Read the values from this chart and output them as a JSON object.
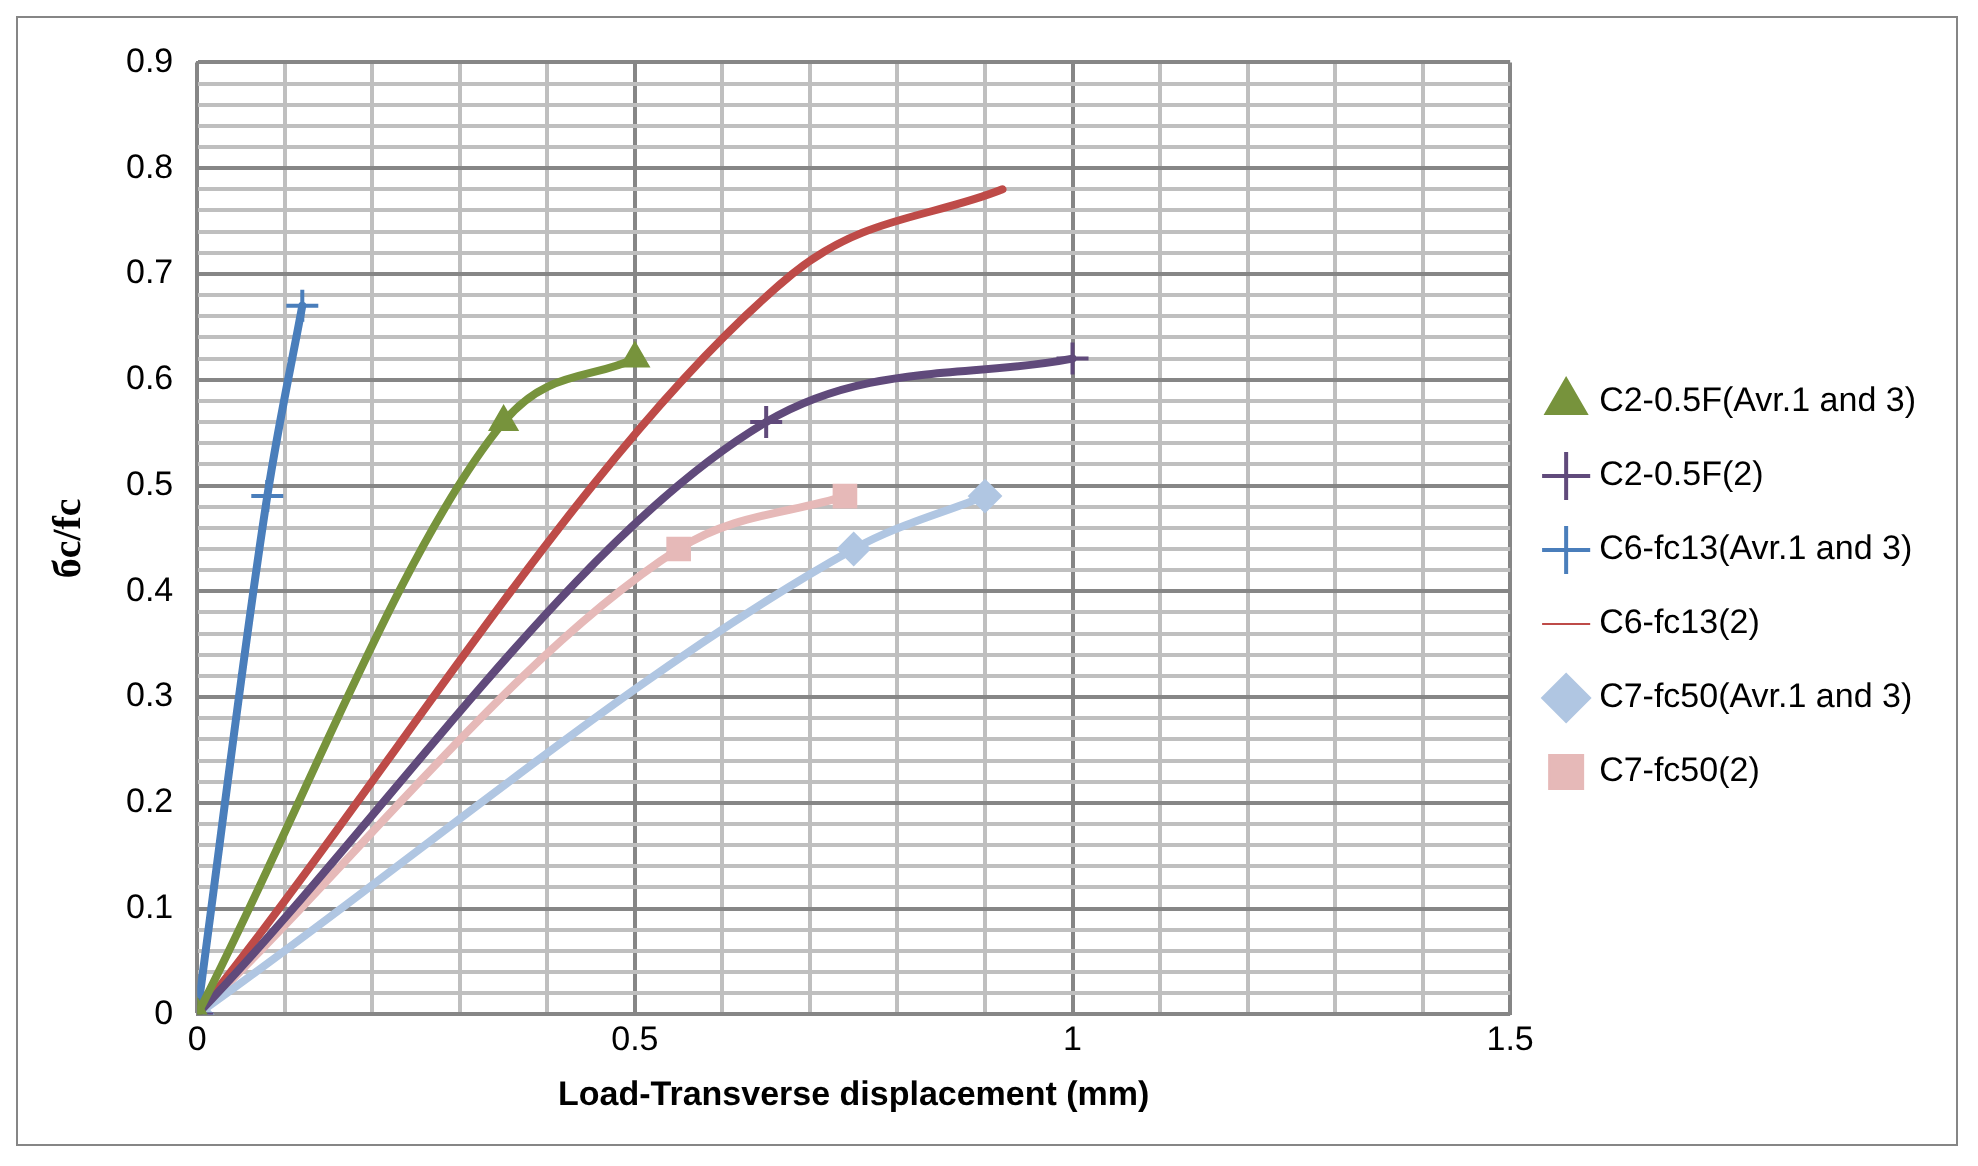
{
  "chart_data": {
    "type": "line",
    "xlabel": "Load-Transverse displacement (mm)",
    "ylabel": "бc/fc",
    "xlim": [
      0,
      1.5
    ],
    "ylim": [
      0,
      0.9
    ],
    "xticks": [
      0,
      {
        "value": 0.1,
        "label": null
      },
      {
        "value": 0.2,
        "label": null
      },
      {
        "value": 0.3,
        "label": null
      },
      {
        "value": 0.4,
        "label": null
      },
      0.5,
      {
        "value": 0.6,
        "label": null
      },
      {
        "value": 0.7,
        "label": null
      },
      {
        "value": 0.8,
        "label": null
      },
      {
        "value": 0.9,
        "label": null
      },
      1,
      {
        "value": 1.1,
        "label": null
      },
      {
        "value": 1.2,
        "label": null
      },
      {
        "value": 1.3,
        "label": null
      },
      {
        "value": 1.4,
        "label": null
      },
      1.5
    ],
    "yticks": [
      0,
      {
        "value": 0.02,
        "label": null
      },
      {
        "value": 0.04,
        "label": null
      },
      {
        "value": 0.06,
        "label": null
      },
      {
        "value": 0.08,
        "label": null
      },
      0.1,
      {
        "value": 0.12,
        "label": null
      },
      {
        "value": 0.14,
        "label": null
      },
      {
        "value": 0.16,
        "label": null
      },
      {
        "value": 0.18,
        "label": null
      },
      0.2,
      {
        "value": 0.22,
        "label": null
      },
      {
        "value": 0.24,
        "label": null
      },
      {
        "value": 0.26,
        "label": null
      },
      {
        "value": 0.28,
        "label": null
      },
      0.3,
      {
        "value": 0.32,
        "label": null
      },
      {
        "value": 0.34,
        "label": null
      },
      {
        "value": 0.36,
        "label": null
      },
      {
        "value": 0.38,
        "label": null
      },
      0.4,
      {
        "value": 0.42,
        "label": null
      },
      {
        "value": 0.44,
        "label": null
      },
      {
        "value": 0.46,
        "label": null
      },
      {
        "value": 0.48,
        "label": null
      },
      0.5,
      {
        "value": 0.52,
        "label": null
      },
      {
        "value": 0.54,
        "label": null
      },
      {
        "value": 0.56,
        "label": null
      },
      {
        "value": 0.58,
        "label": null
      },
      0.6,
      {
        "value": 0.62,
        "label": null
      },
      {
        "value": 0.64,
        "label": null
      },
      {
        "value": 0.66,
        "label": null
      },
      {
        "value": 0.68,
        "label": null
      },
      0.7,
      {
        "value": 0.72,
        "label": null
      },
      {
        "value": 0.74,
        "label": null
      },
      {
        "value": 0.76,
        "label": null
      },
      {
        "value": 0.78,
        "label": null
      },
      0.8,
      {
        "value": 0.82,
        "label": null
      },
      {
        "value": 0.84,
        "label": null
      },
      {
        "value": 0.86,
        "label": null
      },
      {
        "value": 0.88,
        "label": null
      },
      0.9
    ],
    "grid": true,
    "legend": "right",
    "line_style": "solid",
    "series": [
      {
        "name": "C2-0.5F(Avr.1 and 3)",
        "color": "#77933c",
        "marker": "triangle",
        "x": [
          0,
          0.35,
          0.5
        ],
        "values": [
          0,
          0.56,
          0.62
        ]
      },
      {
        "name": "C2-0.5F(2)",
        "color": "#604a7b",
        "marker": "cross",
        "x": [
          0,
          0.65,
          1.0
        ],
        "values": [
          0,
          0.56,
          0.62
        ]
      },
      {
        "name": "C6-fc13(Avr.1 and 3)",
        "color": "#4a7ebb",
        "marker": "cross",
        "x": [
          0,
          0.08,
          0.12
        ],
        "values": [
          0,
          0.49,
          0.67
        ]
      },
      {
        "name": "C6-fc13(2)",
        "color": "#be4b48",
        "marker": "none",
        "x": [
          0,
          0.68,
          0.92
        ],
        "values": [
          0,
          0.7,
          0.78
        ]
      },
      {
        "name": "C7-fc50(Avr.1 and 3)",
        "color": "#b0c6e2",
        "marker": "diamond",
        "x": [
          0,
          0.75,
          0.9
        ],
        "values": [
          0,
          0.44,
          0.49
        ]
      },
      {
        "name": "C7-fc50(2)",
        "color": "#e6b9b8",
        "marker": "square",
        "x": [
          0,
          0.55,
          0.74
        ],
        "values": [
          0,
          0.44,
          0.49
        ]
      }
    ]
  }
}
